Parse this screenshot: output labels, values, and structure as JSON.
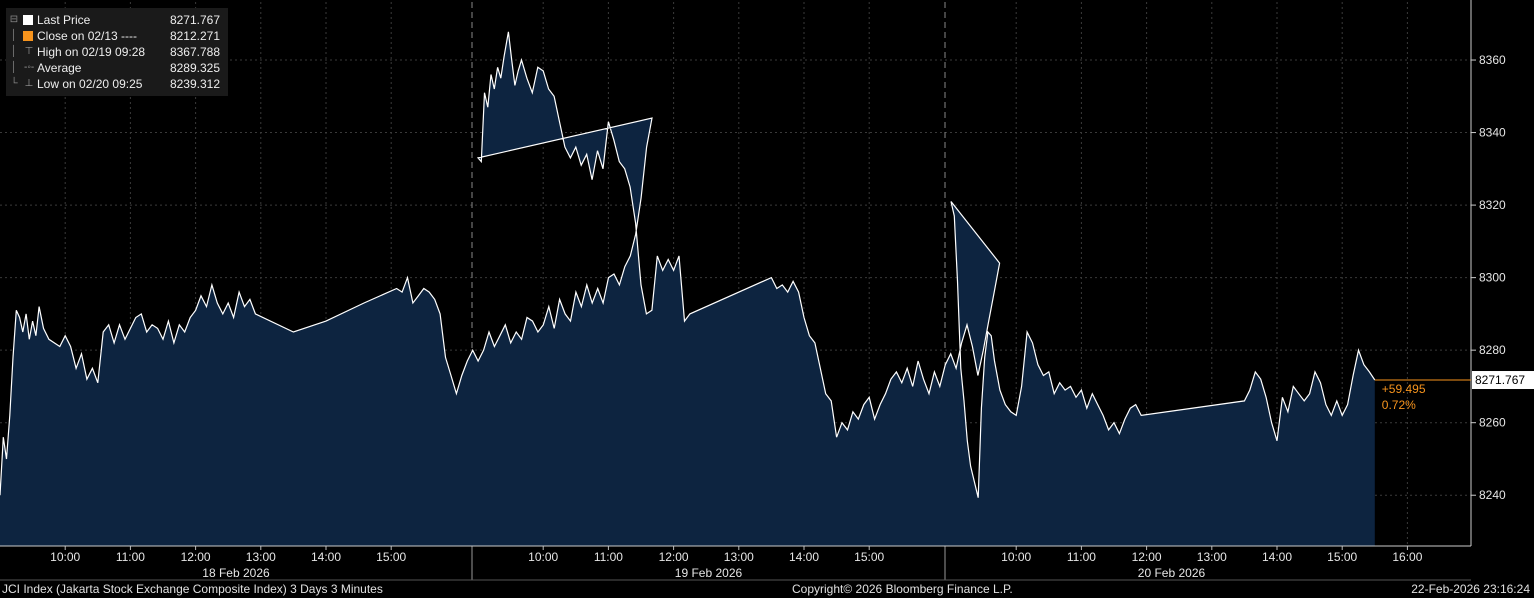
{
  "legend": {
    "items": [
      {
        "label": "Last Price",
        "value": "8271.767",
        "icon": "white-square",
        "color": "#ffffff"
      },
      {
        "label": "Close on 02/13 ----",
        "value": "8212.271",
        "icon": "orange-square",
        "color": "#f7941d"
      },
      {
        "label": "High on 02/19 09:28",
        "value": "8367.788",
        "icon": "high-marker"
      },
      {
        "label": "Average",
        "value": "8289.325",
        "icon": "average-marker"
      },
      {
        "label": "Low on 02/20 09:25",
        "value": "8239.312",
        "icon": "low-marker"
      }
    ]
  },
  "last_price_tag": "8271.767",
  "change": {
    "abs": "+59.495",
    "pct": "0.72%",
    "color": "#f7941d"
  },
  "footer": {
    "left": "JCI Index (Jakarta Stock Exchange Composite Index) 3 Days 3 Minutes",
    "center": "Copyright© 2026 Bloomberg Finance L.P.",
    "right": "22-Feb-2026 23:16:24"
  },
  "colors": {
    "fill": "#0d2440",
    "line": "#ffffff",
    "background": "#000000",
    "accent": "#f7941d"
  },
  "chart_data": {
    "type": "area",
    "ylim": [
      8226,
      8376
    ],
    "yticks": [
      8240,
      8260,
      8280,
      8300,
      8320,
      8340,
      8360
    ],
    "grid": true,
    "days": [
      {
        "label": "18 Feb 2026",
        "hours": [
          "10:00",
          "11:00",
          "12:00",
          "13:00",
          "14:00",
          "15:00"
        ]
      },
      {
        "label": "19 Feb 2026",
        "hours": [
          "10:00",
          "11:00",
          "12:00",
          "13:00",
          "14:00",
          "15:00"
        ]
      },
      {
        "label": "20 Feb 2026",
        "hours": [
          "10:00",
          "11:00",
          "12:00",
          "13:00",
          "14:00",
          "15:00",
          "16:00"
        ]
      }
    ],
    "series": [
      {
        "values": [
          [
            "18 Feb 09:00",
            8240
          ],
          [
            "18 Feb 09:03",
            8256
          ],
          [
            "18 Feb 09:06",
            8250
          ],
          [
            "18 Feb 09:09",
            8262
          ],
          [
            "18 Feb 09:12",
            8278
          ],
          [
            "18 Feb 09:15",
            8291
          ],
          [
            "18 Feb 09:18",
            8289
          ],
          [
            "18 Feb 09:21",
            8285
          ],
          [
            "18 Feb 09:24",
            8290
          ],
          [
            "18 Feb 09:27",
            8283
          ],
          [
            "18 Feb 09:30",
            8288
          ],
          [
            "18 Feb 09:33",
            8284
          ],
          [
            "18 Feb 09:36",
            8292
          ],
          [
            "18 Feb 09:40",
            8286
          ],
          [
            "18 Feb 09:45",
            8283
          ],
          [
            "18 Feb 09:50",
            8282
          ],
          [
            "18 Feb 09:55",
            8281
          ],
          [
            "18 Feb 10:00",
            8284
          ],
          [
            "18 Feb 10:05",
            8281
          ],
          [
            "18 Feb 10:10",
            8275
          ],
          [
            "18 Feb 10:15",
            8279
          ],
          [
            "18 Feb 10:20",
            8272
          ],
          [
            "18 Feb 10:25",
            8275
          ],
          [
            "18 Feb 10:30",
            8271
          ],
          [
            "18 Feb 10:35",
            8285
          ],
          [
            "18 Feb 10:40",
            8287
          ],
          [
            "18 Feb 10:45",
            8282
          ],
          [
            "18 Feb 10:50",
            8287
          ],
          [
            "18 Feb 10:55",
            8283
          ],
          [
            "18 Feb 11:00",
            8286
          ],
          [
            "18 Feb 11:05",
            8289
          ],
          [
            "18 Feb 11:10",
            8290
          ],
          [
            "18 Feb 11:15",
            8285
          ],
          [
            "18 Feb 11:20",
            8287
          ],
          [
            "18 Feb 11:25",
            8286
          ],
          [
            "18 Feb 11:30",
            8283
          ],
          [
            "18 Feb 11:35",
            8288
          ],
          [
            "18 Feb 11:40",
            8282
          ],
          [
            "18 Feb 11:45",
            8287
          ],
          [
            "18 Feb 11:50",
            8285
          ],
          [
            "18 Feb 11:55",
            8289
          ],
          [
            "18 Feb 12:00",
            8291
          ],
          [
            "18 Feb 12:05",
            8295
          ],
          [
            "18 Feb 12:10",
            8292
          ],
          [
            "18 Feb 12:15",
            8298
          ],
          [
            "18 Feb 12:20",
            8293
          ],
          [
            "18 Feb 12:25",
            8290
          ],
          [
            "18 Feb 12:30",
            8293
          ],
          [
            "18 Feb 12:35",
            8289
          ],
          [
            "18 Feb 12:40",
            8296
          ],
          [
            "18 Feb 12:45",
            8292
          ],
          [
            "18 Feb 12:50",
            8294
          ],
          [
            "18 Feb 12:55",
            8290
          ],
          [
            "18 Feb 13:30",
            8285
          ],
          [
            "18 Feb 14:00",
            8288
          ],
          [
            "18 Feb 14:35",
            8293
          ],
          [
            "18 Feb 15:05",
            8297
          ],
          [
            "18 Feb 15:10",
            8296
          ],
          [
            "18 Feb 15:15",
            8300
          ],
          [
            "18 Feb 15:20",
            8293
          ],
          [
            "18 Feb 15:25",
            8295
          ],
          [
            "18 Feb 15:30",
            8297
          ],
          [
            "18 Feb 15:35",
            8296
          ],
          [
            "18 Feb 15:40",
            8294
          ],
          [
            "18 Feb 15:45",
            8290
          ],
          [
            "18 Feb 15:50",
            8278
          ],
          [
            "18 Feb 15:55",
            8273
          ],
          [
            "18 Feb 16:00",
            8268
          ],
          [
            "18 Feb 16:05",
            8273
          ],
          [
            "18 Feb 16:10",
            8277
          ],
          [
            "18 Feb 16:15",
            8280
          ],
          [
            "18 Feb 16:20",
            8277
          ],
          [
            "18 Feb 16:25",
            8280
          ],
          [
            "18 Feb 16:30",
            8285
          ],
          [
            "18 Feb 16:35",
            8281
          ],
          [
            "18 Feb 16:40",
            8284
          ],
          [
            "18 Feb 16:45",
            8287
          ],
          [
            "18 Feb 16:50",
            8282
          ],
          [
            "18 Feb 16:55",
            8285
          ],
          [
            "18 Feb 17:00",
            8283
          ],
          [
            "18 Feb 17:05",
            8289
          ],
          [
            "18 Feb 17:10",
            8288
          ],
          [
            "18 Feb 17:15",
            8285
          ],
          [
            "18 Feb 17:20",
            8287
          ],
          [
            "18 Feb 17:25",
            8292
          ],
          [
            "18 Feb 17:30",
            8286
          ],
          [
            "18 Feb 17:35",
            8294
          ],
          [
            "18 Feb 17:40",
            8290
          ],
          [
            "18 Feb 17:45",
            8288
          ],
          [
            "18 Feb 17:50",
            8296
          ],
          [
            "18 Feb 17:55",
            8292
          ],
          [
            "18 Feb 18:00",
            8298
          ],
          [
            "18 Feb 18:05",
            8293
          ],
          [
            "18 Feb 18:10",
            8297
          ],
          [
            "18 Feb 18:15",
            8293
          ],
          [
            "18 Feb 18:20",
            8300
          ],
          [
            "18 Feb 18:25",
            8301
          ],
          [
            "18 Feb 18:30",
            8298
          ],
          [
            "18 Feb 18:35",
            8303
          ],
          [
            "18 Feb 18:40",
            8306
          ],
          [
            "18 Feb 18:45",
            8312
          ],
          [
            "18 Feb 18:50",
            8322
          ],
          [
            "18 Feb 18:55",
            8336
          ],
          [
            "18 Feb 19:00",
            8344
          ],
          [
            "19 Feb 09:00",
            8333
          ],
          [
            "19 Feb 09:03",
            8332
          ],
          [
            "19 Feb 09:06",
            8351
          ],
          [
            "19 Feb 09:09",
            8347
          ],
          [
            "19 Feb 09:12",
            8356
          ],
          [
            "19 Feb 09:15",
            8352
          ],
          [
            "19 Feb 09:18",
            8358
          ],
          [
            "19 Feb 09:21",
            8355
          ],
          [
            "19 Feb 09:24",
            8361
          ],
          [
            "19 Feb 09:28",
            8367.788
          ],
          [
            "19 Feb 09:31",
            8360
          ],
          [
            "19 Feb 09:34",
            8353
          ],
          [
            "19 Feb 09:37",
            8357
          ],
          [
            "19 Feb 09:40",
            8360
          ],
          [
            "19 Feb 09:45",
            8355
          ],
          [
            "19 Feb 09:50",
            8351
          ],
          [
            "19 Feb 09:55",
            8358
          ],
          [
            "19 Feb 10:00",
            8357
          ],
          [
            "19 Feb 10:05",
            8352
          ],
          [
            "19 Feb 10:10",
            8350
          ],
          [
            "19 Feb 10:15",
            8343
          ],
          [
            "19 Feb 10:20",
            8336
          ],
          [
            "19 Feb 10:25",
            8333
          ],
          [
            "19 Feb 10:30",
            8336
          ],
          [
            "19 Feb 10:35",
            8331
          ],
          [
            "19 Feb 10:40",
            8334
          ],
          [
            "19 Feb 10:45",
            8327
          ],
          [
            "19 Feb 10:50",
            8335
          ],
          [
            "19 Feb 10:55",
            8330
          ],
          [
            "19 Feb 11:00",
            8343
          ],
          [
            "19 Feb 11:05",
            8338
          ],
          [
            "19 Feb 11:10",
            8332
          ],
          [
            "19 Feb 11:15",
            8330
          ],
          [
            "19 Feb 11:20",
            8325
          ],
          [
            "19 Feb 11:25",
            8315
          ],
          [
            "19 Feb 11:30",
            8298
          ],
          [
            "19 Feb 11:35",
            8290
          ],
          [
            "19 Feb 11:40",
            8291
          ],
          [
            "19 Feb 11:45",
            8306
          ],
          [
            "19 Feb 11:50",
            8302
          ],
          [
            "19 Feb 11:55",
            8305
          ],
          [
            "19 Feb 12:00",
            8302
          ],
          [
            "19 Feb 12:05",
            8306
          ],
          [
            "19 Feb 12:10",
            8288
          ],
          [
            "19 Feb 12:15",
            8290
          ],
          [
            "19 Feb 13:30",
            8300
          ],
          [
            "19 Feb 13:35",
            8297
          ],
          [
            "19 Feb 13:40",
            8298
          ],
          [
            "19 Feb 13:45",
            8296
          ],
          [
            "19 Feb 13:50",
            8299
          ],
          [
            "19 Feb 13:55",
            8296
          ],
          [
            "19 Feb 14:00",
            8289
          ],
          [
            "19 Feb 14:05",
            8284
          ],
          [
            "19 Feb 14:10",
            8282
          ],
          [
            "19 Feb 14:15",
            8275
          ],
          [
            "19 Feb 14:20",
            8268
          ],
          [
            "19 Feb 14:25",
            8266
          ],
          [
            "19 Feb 14:30",
            8256
          ],
          [
            "19 Feb 14:35",
            8260
          ],
          [
            "19 Feb 14:40",
            8258
          ],
          [
            "19 Feb 14:45",
            8263
          ],
          [
            "19 Feb 14:50",
            8261
          ],
          [
            "19 Feb 14:55",
            8265
          ],
          [
            "19 Feb 15:00",
            8267
          ],
          [
            "19 Feb 15:05",
            8261
          ],
          [
            "19 Feb 15:10",
            8265
          ],
          [
            "19 Feb 15:15",
            8268
          ],
          [
            "19 Feb 15:20",
            8272
          ],
          [
            "19 Feb 15:25",
            8274
          ],
          [
            "19 Feb 15:30",
            8271
          ],
          [
            "19 Feb 15:35",
            8275
          ],
          [
            "19 Feb 15:40",
            8270
          ],
          [
            "19 Feb 15:45",
            8277
          ],
          [
            "19 Feb 15:50",
            8272
          ],
          [
            "19 Feb 15:55",
            8268
          ],
          [
            "19 Feb 16:00",
            8274
          ],
          [
            "19 Feb 16:05",
            8270
          ],
          [
            "19 Feb 16:10",
            8276
          ],
          [
            "19 Feb 16:15",
            8279
          ],
          [
            "19 Feb 16:20",
            8275
          ],
          [
            "19 Feb 16:25",
            8282
          ],
          [
            "19 Feb 16:30",
            8287
          ],
          [
            "19 Feb 16:35",
            8281
          ],
          [
            "19 Feb 16:40",
            8273
          ],
          [
            "19 Feb 16:45",
            8280
          ],
          [
            "19 Feb 16:50",
            8288
          ],
          [
            "19 Feb 16:55",
            8296
          ],
          [
            "19 Feb 17:00",
            8304
          ],
          [
            "20 Feb 09:00",
            8321
          ],
          [
            "20 Feb 09:03",
            8317
          ],
          [
            "20 Feb 09:06",
            8299
          ],
          [
            "20 Feb 09:09",
            8275
          ],
          [
            "20 Feb 09:12",
            8266
          ],
          [
            "20 Feb 09:15",
            8255
          ],
          [
            "20 Feb 09:18",
            8248
          ],
          [
            "20 Feb 09:25",
            8239.312
          ],
          [
            "20 Feb 09:28",
            8264
          ],
          [
            "20 Feb 09:31",
            8278
          ],
          [
            "20 Feb 09:34",
            8285
          ],
          [
            "20 Feb 09:37",
            8284
          ],
          [
            "20 Feb 09:40",
            8277
          ],
          [
            "20 Feb 09:45",
            8269
          ],
          [
            "20 Feb 09:50",
            8265
          ],
          [
            "20 Feb 09:55",
            8263
          ],
          [
            "20 Feb 10:00",
            8262
          ],
          [
            "20 Feb 10:05",
            8270
          ],
          [
            "20 Feb 10:10",
            8285
          ],
          [
            "20 Feb 10:15",
            8282
          ],
          [
            "20 Feb 10:20",
            8276
          ],
          [
            "20 Feb 10:25",
            8273
          ],
          [
            "20 Feb 10:30",
            8274
          ],
          [
            "20 Feb 10:35",
            8268
          ],
          [
            "20 Feb 10:40",
            8271
          ],
          [
            "20 Feb 10:45",
            8269
          ],
          [
            "20 Feb 10:50",
            8270
          ],
          [
            "20 Feb 10:55",
            8267
          ],
          [
            "20 Feb 11:00",
            8269
          ],
          [
            "20 Feb 11:05",
            8264
          ],
          [
            "20 Feb 11:10",
            8268
          ],
          [
            "20 Feb 11:15",
            8265
          ],
          [
            "20 Feb 11:20",
            8262
          ],
          [
            "20 Feb 11:25",
            8258
          ],
          [
            "20 Feb 11:30",
            8260
          ],
          [
            "20 Feb 11:35",
            8257
          ],
          [
            "20 Feb 11:40",
            8261
          ],
          [
            "20 Feb 11:45",
            8264
          ],
          [
            "20 Feb 11:50",
            8265
          ],
          [
            "20 Feb 11:55",
            8262
          ],
          [
            "20 Feb 13:30",
            8266
          ],
          [
            "20 Feb 13:35",
            8269
          ],
          [
            "20 Feb 13:40",
            8274
          ],
          [
            "20 Feb 13:45",
            8272
          ],
          [
            "20 Feb 13:50",
            8267
          ],
          [
            "20 Feb 13:55",
            8260
          ],
          [
            "20 Feb 14:00",
            8255
          ],
          [
            "20 Feb 14:05",
            8267
          ],
          [
            "20 Feb 14:10",
            8263
          ],
          [
            "20 Feb 14:15",
            8270
          ],
          [
            "20 Feb 14:20",
            8268
          ],
          [
            "20 Feb 14:25",
            8266
          ],
          [
            "20 Feb 14:30",
            8268
          ],
          [
            "20 Feb 14:35",
            8274
          ],
          [
            "20 Feb 14:40",
            8271
          ],
          [
            "20 Feb 14:45",
            8265
          ],
          [
            "20 Feb 14:50",
            8262
          ],
          [
            "20 Feb 14:55",
            8266
          ],
          [
            "20 Feb 15:00",
            8262
          ],
          [
            "20 Feb 15:05",
            8265
          ],
          [
            "20 Feb 15:10",
            8273
          ],
          [
            "20 Feb 15:15",
            8280
          ],
          [
            "20 Feb 15:20",
            8276
          ],
          [
            "20 Feb 15:25",
            8274
          ],
          [
            "20 Feb 15:30",
            8271.767
          ]
        ]
      }
    ]
  }
}
